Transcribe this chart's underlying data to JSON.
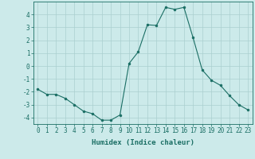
{
  "x": [
    0,
    1,
    2,
    3,
    4,
    5,
    6,
    7,
    8,
    9,
    10,
    11,
    12,
    13,
    14,
    15,
    16,
    17,
    18,
    19,
    20,
    21,
    22,
    23
  ],
  "y": [
    -1.8,
    -2.2,
    -2.2,
    -2.5,
    -3.0,
    -3.5,
    -3.7,
    -4.2,
    -4.2,
    -3.8,
    0.2,
    1.1,
    3.2,
    3.15,
    4.55,
    4.4,
    4.55,
    2.2,
    -0.3,
    -1.1,
    -1.5,
    -2.3,
    -3.0,
    -3.4
  ],
  "bg_color": "#cceaea",
  "line_color": "#1a6e64",
  "marker_color": "#1a6e64",
  "grid_color": "#aacfcf",
  "xlabel": "Humidex (Indice chaleur)",
  "ylim": [
    -4.5,
    5.0
  ],
  "xlim": [
    -0.5,
    23.5
  ],
  "yticks": [
    -4,
    -3,
    -2,
    -1,
    0,
    1,
    2,
    3,
    4
  ],
  "xticks": [
    0,
    1,
    2,
    3,
    4,
    5,
    6,
    7,
    8,
    9,
    10,
    11,
    12,
    13,
    14,
    15,
    16,
    17,
    18,
    19,
    20,
    21,
    22,
    23
  ],
  "tick_color": "#1a6e64",
  "label_fontsize": 6.5,
  "tick_fontsize": 5.5
}
